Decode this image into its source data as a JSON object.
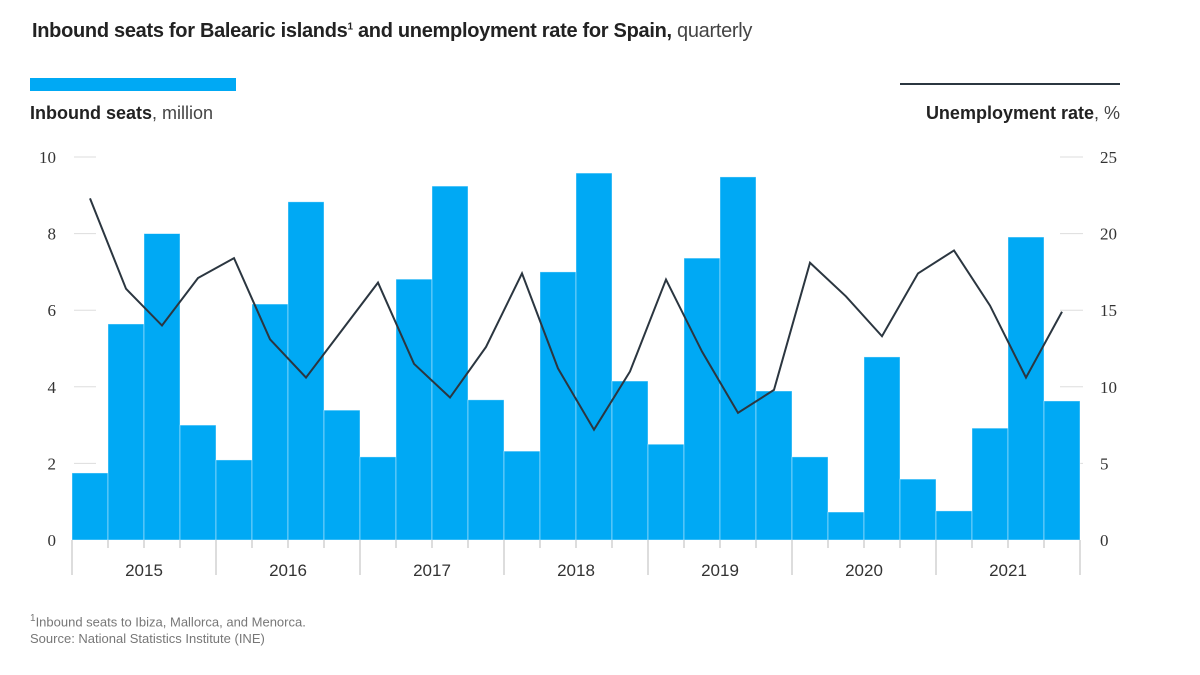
{
  "chart_data": {
    "type": "bar+line",
    "title": "Inbound seats for Balearic islands",
    "title_sup": "1",
    "title_rest": " and unemployment rate for Spain,",
    "title_suffix": " quarterly",
    "years": [
      "2015",
      "2016",
      "2017",
      "2018",
      "2019",
      "2020",
      "2021"
    ],
    "quarters_per_year": 4,
    "series": [
      {
        "name": "Inbound seats",
        "unit": ", million",
        "axis": "left",
        "type": "bar",
        "color": "#00a9f4",
        "values": [
          1.75,
          5.64,
          8.0,
          3.0,
          2.09,
          6.16,
          8.83,
          3.39,
          2.17,
          6.81,
          9.24,
          3.66,
          2.32,
          7.0,
          9.58,
          4.15,
          2.5,
          7.36,
          9.48,
          3.89,
          2.17,
          0.73,
          4.78,
          1.59,
          0.76,
          2.92,
          7.91,
          3.63
        ]
      },
      {
        "name": "Unemployment rate",
        "unit": ", %",
        "axis": "right",
        "type": "line",
        "color": "#2b3640",
        "values": [
          22.3,
          16.4,
          14.0,
          17.1,
          18.4,
          13.1,
          10.6,
          13.7,
          16.8,
          11.5,
          9.3,
          12.6,
          17.4,
          11.2,
          7.2,
          11.0,
          17.0,
          12.3,
          8.3,
          9.8,
          18.1,
          15.9,
          13.3,
          17.4,
          18.9,
          15.3,
          10.6,
          14.9
        ]
      }
    ],
    "left_axis": {
      "ylim": [
        0,
        10
      ],
      "ticks": [
        "0",
        "2",
        "4",
        "6",
        "8",
        "10"
      ]
    },
    "right_axis": {
      "ylim": [
        0,
        25
      ],
      "ticks": [
        "0",
        "5",
        "10",
        "15",
        "20",
        "25"
      ]
    },
    "grid": false,
    "legend": "top"
  },
  "footnote": {
    "sup": "1",
    "text": "Inbound seats to Ibiza, Mallorca, and Menorca.",
    "source": "Source: National Statistics Institute (INE)"
  }
}
